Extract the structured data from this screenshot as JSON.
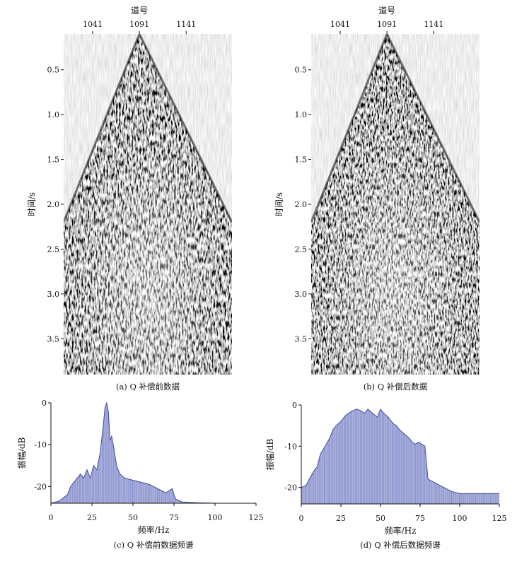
{
  "chart_data": [
    {
      "id": "a",
      "type": "heatmap",
      "subtitle": "seismic-section",
      "caption": "(a) Q 补偿前数据",
      "xlabel": "道号",
      "ylabel": "时间/s",
      "xticks": [
        1041,
        1091,
        1141
      ],
      "yticks": [
        "0.5",
        "1.0",
        "1.5",
        "2.0",
        "2.5",
        "3.0",
        "3.5"
      ],
      "xlim": [
        1010,
        1190
      ],
      "ylim": [
        0.1,
        3.9
      ],
      "apex_trace": 1091,
      "apex_time": 0.1,
      "first_break_time_at_edges": 2.2
    },
    {
      "id": "b",
      "type": "heatmap",
      "subtitle": "seismic-section",
      "caption": "(b) Q 补偿后数据",
      "xlabel": "道号",
      "ylabel": "时间/s",
      "xticks": [
        1041,
        1091,
        1141
      ],
      "yticks": [
        "0.5",
        "1.0",
        "1.5",
        "2.0",
        "2.5",
        "3.0",
        "3.5"
      ],
      "xlim": [
        1010,
        1190
      ],
      "ylim": [
        0.1,
        3.9
      ],
      "apex_trace": 1091,
      "apex_time": 0.1,
      "first_break_time_at_edges": 2.2
    },
    {
      "id": "c",
      "type": "area",
      "caption": "(c) Q 补偿前数据频谱",
      "xlabel": "频率/Hz",
      "ylabel": "振幅/dB",
      "xlim": [
        0,
        125
      ],
      "ylim": [
        -24,
        0
      ],
      "xticks": [
        0,
        25,
        50,
        75,
        100,
        125
      ],
      "yticks": [
        0,
        -10,
        -20
      ],
      "x": [
        0,
        5,
        10,
        12,
        15,
        18,
        20,
        22,
        24,
        26,
        28,
        30,
        32,
        33,
        34,
        35,
        36,
        37,
        38,
        40,
        42,
        45,
        50,
        55,
        60,
        65,
        70,
        72,
        74,
        75,
        76,
        80,
        85,
        90,
        100,
        110,
        125
      ],
      "y": [
        -24,
        -23.5,
        -22,
        -20,
        -18.5,
        -17,
        -18,
        -16,
        -18,
        -15,
        -16,
        -12,
        -5,
        -1,
        0,
        -2,
        -9,
        -8,
        -10,
        -15,
        -17,
        -18,
        -18.5,
        -19,
        -19.5,
        -20.5,
        -21.5,
        -21,
        -20.5,
        -22,
        -23,
        -23.7,
        -23.8,
        -23.9,
        -24,
        -24,
        -24
      ]
    },
    {
      "id": "d",
      "type": "area",
      "caption": "(d) Q 补偿后数据频谱",
      "xlabel": "频率/Hz",
      "ylabel": "振幅/dB",
      "xlim": [
        0,
        125
      ],
      "ylim": [
        -24,
        0
      ],
      "xticks": [
        0,
        25,
        50,
        75,
        100,
        125
      ],
      "yticks": [
        0,
        -10,
        -20
      ],
      "x": [
        0,
        3,
        5,
        8,
        10,
        12,
        15,
        18,
        20,
        22,
        25,
        28,
        30,
        32,
        35,
        38,
        40,
        42,
        45,
        48,
        50,
        52,
        55,
        58,
        60,
        62,
        65,
        68,
        70,
        72,
        74,
        76,
        78,
        80,
        85,
        90,
        95,
        100,
        110,
        120,
        125
      ],
      "y": [
        -20,
        -19.5,
        -18,
        -16,
        -15,
        -12,
        -10,
        -8,
        -6,
        -5,
        -4,
        -2.5,
        -2,
        -1.5,
        -1,
        -1.5,
        -2,
        -1,
        -2,
        -3,
        -1,
        -2,
        -3,
        -4.5,
        -5,
        -6,
        -7,
        -8,
        -9,
        -9.5,
        -9,
        -9.5,
        -10,
        -18,
        -19,
        -20,
        -21,
        -21.5,
        -21.5,
        -21.5,
        -21.5
      ]
    }
  ]
}
